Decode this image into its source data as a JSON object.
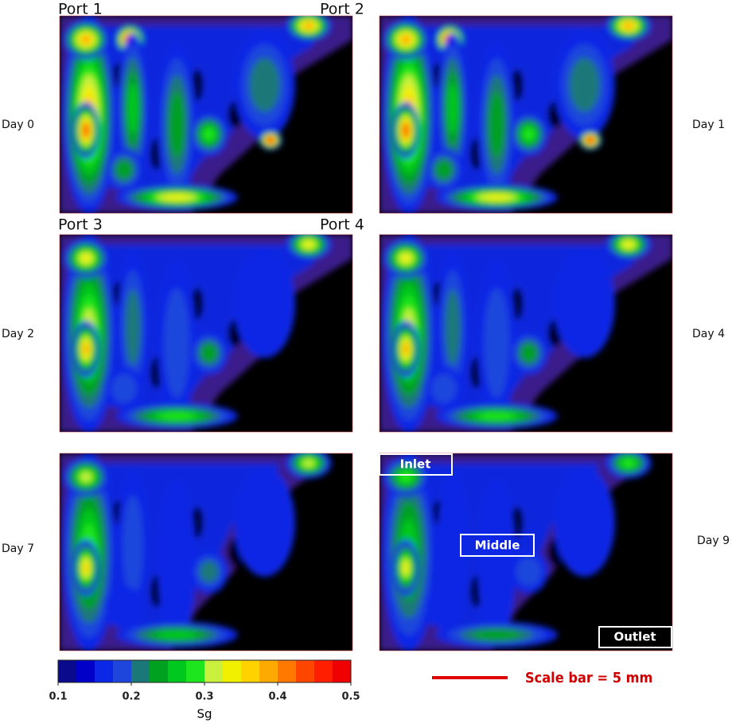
{
  "panels": [
    {
      "label": "Day 0"
    },
    {
      "label": "Day 1"
    },
    {
      "label": "Day 2"
    },
    {
      "label": "Day 4"
    },
    {
      "label": "Day 7"
    },
    {
      "label": "Day 9"
    }
  ],
  "ports": [
    "Port 1",
    "Port 2",
    "Port 3",
    "Port 4"
  ],
  "annotations": [
    "Inlet",
    "Middle",
    "Outlet"
  ],
  "colorbar": {
    "colors": [
      "#0a0a8c",
      "#0000c8",
      "#0a28e6",
      "#1e46dc",
      "#1a7878",
      "#00a020",
      "#00c81e",
      "#1ee61e",
      "#c8f03c",
      "#f0f000",
      "#ffd200",
      "#ffaa00",
      "#ff7800",
      "#ff4600",
      "#ff1e00",
      "#f00000"
    ],
    "lim": [
      0.1,
      0.5
    ],
    "ticks": [
      0.1,
      0.2,
      0.3,
      0.4,
      0.5
    ],
    "label": "Sg"
  },
  "scale_bar": "Scale bar = 5 mm"
}
